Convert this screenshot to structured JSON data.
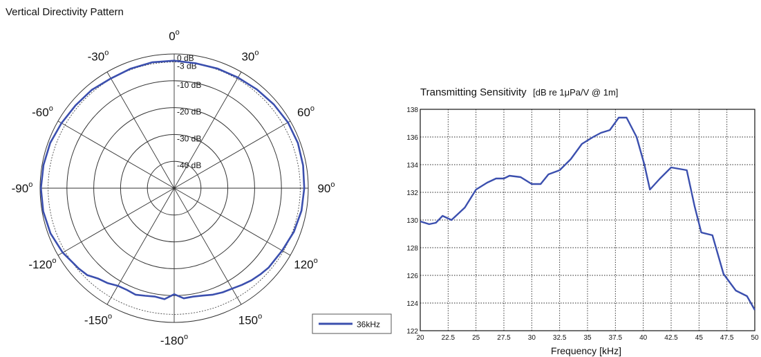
{
  "polar": {
    "title": "Vertical Directivity Pattern",
    "angle_labels": [
      {
        "value": "0",
        "deg": 0
      },
      {
        "value": "30",
        "deg": 30
      },
      {
        "value": "60",
        "deg": 60
      },
      {
        "value": "90",
        "deg": 90
      },
      {
        "value": "120",
        "deg": 120
      },
      {
        "value": "150",
        "deg": 150
      },
      {
        "value": "-180",
        "deg": 180
      },
      {
        "value": "-150",
        "deg": -150
      },
      {
        "value": "-120",
        "deg": -120
      },
      {
        "value": "-90",
        "deg": -90
      },
      {
        "value": "-60",
        "deg": -60
      },
      {
        "value": "-30",
        "deg": -30
      }
    ],
    "degree_symbol": "o",
    "ring_labels": [
      {
        "label": "0 dB",
        "db": 0
      },
      {
        "label": "-3 dB",
        "db": -3
      },
      {
        "label": "-10 dB",
        "db": -10
      },
      {
        "label": "-20 dB",
        "db": -20
      },
      {
        "label": "-30 dB",
        "db": -30
      },
      {
        "label": "-40 dB",
        "db": -40
      }
    ],
    "legend": {
      "label": "36kHz",
      "color": "#3b4fae"
    }
  },
  "line": {
    "title": "Transmitting Sensitivity",
    "title_units": "[dB re 1μPa/V @ 1m]",
    "xlabel": "Frequency [kHz]",
    "color": "#3b4fae"
  },
  "chart_data": [
    {
      "type": "polar",
      "title": "Vertical Directivity Pattern",
      "radial_range_db": [
        -50,
        0
      ],
      "series": [
        {
          "name": "36kHz",
          "angles_deg": [
            0,
            10,
            20,
            30,
            40,
            50,
            60,
            70,
            80,
            90,
            100,
            110,
            120,
            130,
            135,
            140,
            145,
            150,
            155,
            160,
            165,
            170,
            175,
            180,
            185,
            190,
            195,
            200,
            205,
            210,
            215,
            220,
            225,
            230,
            240,
            250,
            260,
            270,
            280,
            290,
            300,
            310,
            320,
            330,
            340,
            350,
            360
          ],
          "values_db": [
            -2.5,
            -2.8,
            -2.6,
            -2.4,
            -2.0,
            -1.5,
            -1.0,
            -0.9,
            -1.2,
            -1.5,
            -1.8,
            -2.5,
            -3.5,
            -4.0,
            -4.6,
            -5.2,
            -6.0,
            -6.8,
            -7.2,
            -7.8,
            -8.6,
            -9.0,
            -8.8,
            -10.5,
            -8.5,
            -9.0,
            -8.5,
            -7.8,
            -8.2,
            -8.0,
            -6.8,
            -6.0,
            -4.2,
            -3.5,
            -2.0,
            -0.9,
            -0.4,
            -0.3,
            -0.5,
            -0.8,
            -1.5,
            -2.0,
            -2.2,
            -2.8,
            -2.6,
            -2.4,
            -2.5
          ]
        }
      ],
      "ring_labels": [
        "0 dB",
        "-3 dB",
        "-10 dB",
        "-20 dB",
        "-30 dB",
        "-40 dB"
      ],
      "angle_labels": [
        "0°",
        "30°",
        "60°",
        "90°",
        "120°",
        "150°",
        "-180°",
        "-150°",
        "-120°",
        "-90°",
        "-60°",
        "-30°"
      ],
      "legend_position": "bottom-right"
    },
    {
      "type": "line",
      "title": "Transmitting Sensitivity [dB re 1μPa/V @ 1m]",
      "xlabel": "Frequency [kHz]",
      "ylabel": "",
      "xlim": [
        20,
        50
      ],
      "ylim": [
        122,
        138
      ],
      "xticks": [
        20,
        22.5,
        25,
        27.5,
        30,
        32.5,
        35,
        37.5,
        40,
        42.5,
        45,
        47.5,
        50
      ],
      "yticks": [
        122,
        124,
        126,
        128,
        130,
        132,
        134,
        136,
        138
      ],
      "grid": true,
      "x": [
        20,
        20.8,
        21.4,
        22,
        22.8,
        24,
        25,
        26,
        26.8,
        27.5,
        28,
        29,
        29.6,
        30,
        30.8,
        31.5,
        32.5,
        33.5,
        34.5,
        35.5,
        36.2,
        37,
        37.8,
        38.5,
        39.4,
        40.1,
        40.6,
        41.5,
        42.5,
        43.2,
        43.9,
        44.6,
        45.2,
        46.2,
        47.2,
        48.3,
        49.3,
        50
      ],
      "series": [
        {
          "name": "36kHz",
          "values": [
            129.9,
            129.7,
            129.8,
            130.3,
            130.0,
            130.9,
            132.2,
            132.7,
            133.0,
            133.0,
            133.2,
            133.1,
            132.8,
            132.6,
            132.6,
            133.3,
            133.6,
            134.4,
            135.5,
            136.0,
            136.3,
            136.5,
            137.4,
            137.4,
            136.0,
            134.0,
            132.2,
            133.0,
            133.8,
            133.7,
            133.6,
            131.0,
            129.1,
            128.9,
            126.1,
            124.9,
            124.5,
            123.5
          ]
        }
      ]
    }
  ]
}
